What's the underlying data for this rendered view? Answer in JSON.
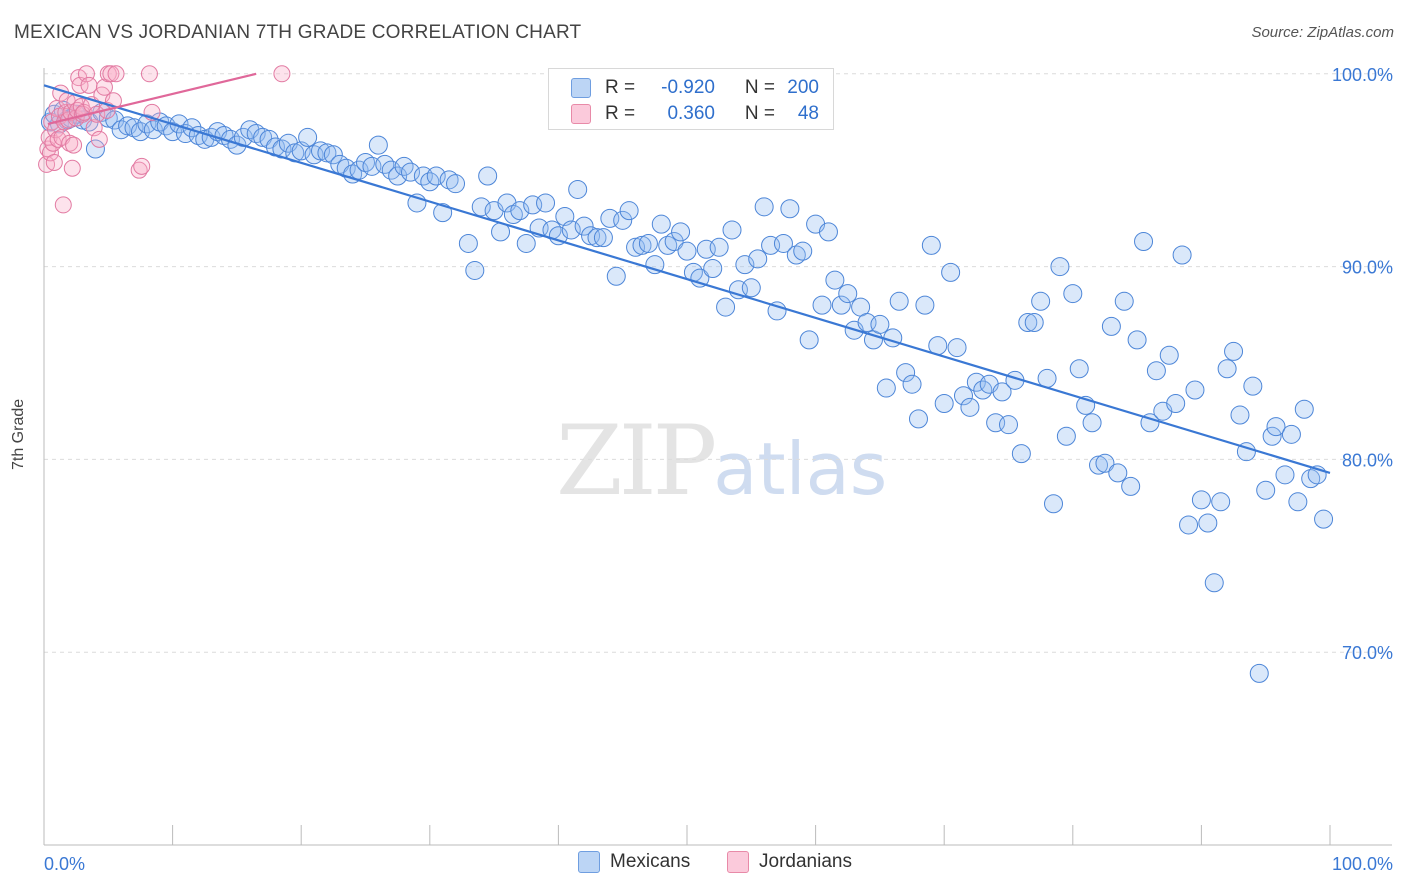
{
  "title": "MEXICAN VS JORDANIAN 7TH GRADE CORRELATION CHART",
  "source": "Source: ZipAtlas.com",
  "watermark": {
    "zip": "ZIP",
    "atlas": "atlas"
  },
  "stats": {
    "rows": [
      {
        "r_label": "R =",
        "r_value": "-0.920",
        "n_label": "N =",
        "n_value": "200",
        "color": "#a9c8f2",
        "border": "#6f9ee0"
      },
      {
        "r_label": "R =",
        "r_value": "0.360",
        "n_label": "N =",
        "n_value": "48",
        "color": "#f7b9cd",
        "border": "#e88aa8"
      }
    ]
  },
  "legend": {
    "items": [
      {
        "label": "Mexicans",
        "color": "#bcd5f5",
        "border": "#6f9ee0"
      },
      {
        "label": "Jordanians",
        "color": "#fbcadb",
        "border": "#e88aa8"
      }
    ]
  },
  "chart_data": {
    "type": "scatter",
    "title": "MEXICAN VS JORDANIAN 7TH GRADE CORRELATION CHART",
    "xlabel": "",
    "ylabel": "7th Grade",
    "xlim": [
      0,
      100
    ],
    "ylim": [
      60,
      100.5
    ],
    "x_tick_labels": [
      "0.0%",
      "100.0%"
    ],
    "y_ticks": [
      70,
      80,
      90,
      100
    ],
    "y_tick_labels": [
      "70.0%",
      "80.0%",
      "90.0%",
      "100.0%"
    ],
    "grid": true,
    "colors": {
      "mexicans": "#3a78d4",
      "jordanians": "#e0689a",
      "tick_label": "#3a78d4"
    },
    "series": [
      {
        "name": "Mexicans",
        "trend": {
          "x": [
            0,
            100
          ],
          "y": [
            99.4,
            79.3
          ]
        },
        "points": [
          [
            0.5,
            97.5
          ],
          [
            0.8,
            97.9
          ],
          [
            1.2,
            97.4
          ],
          [
            1.5,
            98.1
          ],
          [
            1.8,
            97.6
          ],
          [
            2.1,
            97.7
          ],
          [
            2.5,
            97.9
          ],
          [
            3.0,
            97.6
          ],
          [
            3.5,
            97.5
          ],
          [
            4.0,
            96.1
          ],
          [
            4.5,
            98.0
          ],
          [
            5.0,
            97.7
          ],
          [
            5.5,
            97.6
          ],
          [
            6.0,
            97.1
          ],
          [
            6.5,
            97.3
          ],
          [
            7.0,
            97.2
          ],
          [
            7.5,
            97.0
          ],
          [
            8.0,
            97.4
          ],
          [
            8.5,
            97.1
          ],
          [
            9.0,
            97.5
          ],
          [
            9.5,
            97.3
          ],
          [
            10.0,
            97.0
          ],
          [
            10.5,
            97.4
          ],
          [
            11.0,
            96.9
          ],
          [
            11.5,
            97.2
          ],
          [
            12.0,
            96.8
          ],
          [
            12.5,
            96.6
          ],
          [
            13.0,
            96.7
          ],
          [
            13.5,
            97.0
          ],
          [
            14.0,
            96.8
          ],
          [
            14.5,
            96.6
          ],
          [
            15.0,
            96.3
          ],
          [
            15.5,
            96.7
          ],
          [
            16.0,
            97.1
          ],
          [
            16.5,
            96.9
          ],
          [
            17.0,
            96.7
          ],
          [
            17.5,
            96.6
          ],
          [
            18.0,
            96.2
          ],
          [
            18.5,
            96.1
          ],
          [
            19.0,
            96.4
          ],
          [
            19.5,
            95.9
          ],
          [
            20.0,
            96.0
          ],
          [
            20.5,
            96.7
          ],
          [
            21.0,
            95.8
          ],
          [
            21.5,
            96.0
          ],
          [
            22.0,
            95.9
          ],
          [
            22.5,
            95.8
          ],
          [
            23.0,
            95.3
          ],
          [
            23.5,
            95.1
          ],
          [
            24.0,
            94.8
          ],
          [
            24.5,
            95.0
          ],
          [
            25.0,
            95.4
          ],
          [
            25.5,
            95.2
          ],
          [
            26.0,
            96.3
          ],
          [
            26.5,
            95.3
          ],
          [
            27.0,
            95.0
          ],
          [
            27.5,
            94.7
          ],
          [
            28.0,
            95.2
          ],
          [
            28.5,
            94.9
          ],
          [
            29.0,
            93.3
          ],
          [
            29.5,
            94.7
          ],
          [
            30.0,
            94.4
          ],
          [
            30.5,
            94.7
          ],
          [
            31.0,
            92.8
          ],
          [
            31.5,
            94.5
          ],
          [
            32.0,
            94.3
          ],
          [
            33.0,
            91.2
          ],
          [
            33.5,
            89.8
          ],
          [
            34.0,
            93.1
          ],
          [
            34.5,
            94.7
          ],
          [
            35.0,
            92.9
          ],
          [
            35.5,
            91.8
          ],
          [
            36.0,
            93.3
          ],
          [
            36.5,
            92.7
          ],
          [
            37.0,
            92.9
          ],
          [
            37.5,
            91.2
          ],
          [
            38.0,
            93.2
          ],
          [
            38.5,
            92.0
          ],
          [
            39.0,
            93.3
          ],
          [
            39.5,
            91.9
          ],
          [
            40.0,
            91.6
          ],
          [
            40.5,
            92.6
          ],
          [
            41.0,
            91.9
          ],
          [
            41.5,
            94.0
          ],
          [
            42.0,
            92.1
          ],
          [
            42.5,
            91.6
          ],
          [
            43.0,
            91.5
          ],
          [
            43.5,
            91.5
          ],
          [
            44.0,
            92.5
          ],
          [
            44.5,
            89.5
          ],
          [
            45.0,
            92.4
          ],
          [
            45.5,
            92.9
          ],
          [
            46.0,
            91.0
          ],
          [
            46.5,
            91.1
          ],
          [
            47.0,
            91.2
          ],
          [
            47.5,
            90.1
          ],
          [
            48.0,
            92.2
          ],
          [
            48.5,
            91.1
          ],
          [
            49.0,
            91.3
          ],
          [
            49.5,
            91.8
          ],
          [
            50.0,
            90.8
          ],
          [
            50.5,
            89.7
          ],
          [
            51.0,
            89.4
          ],
          [
            51.5,
            90.9
          ],
          [
            52.0,
            89.9
          ],
          [
            52.5,
            91.0
          ],
          [
            53.0,
            87.9
          ],
          [
            53.5,
            91.9
          ],
          [
            54.0,
            88.8
          ],
          [
            54.5,
            90.1
          ],
          [
            55.0,
            88.9
          ],
          [
            55.5,
            90.4
          ],
          [
            56.0,
            93.1
          ],
          [
            56.5,
            91.1
          ],
          [
            57.0,
            87.7
          ],
          [
            57.5,
            91.2
          ],
          [
            58.0,
            93.0
          ],
          [
            58.5,
            90.6
          ],
          [
            59.0,
            90.8
          ],
          [
            59.5,
            86.2
          ],
          [
            60.0,
            92.2
          ],
          [
            60.5,
            88.0
          ],
          [
            61.0,
            91.8
          ],
          [
            61.5,
            89.3
          ],
          [
            62.0,
            88.0
          ],
          [
            62.5,
            88.6
          ],
          [
            63.0,
            86.7
          ],
          [
            63.5,
            87.9
          ],
          [
            64.0,
            87.1
          ],
          [
            64.5,
            86.2
          ],
          [
            65.0,
            87.0
          ],
          [
            65.5,
            83.7
          ],
          [
            66.0,
            86.3
          ],
          [
            66.5,
            88.2
          ],
          [
            67.0,
            84.5
          ],
          [
            67.5,
            83.9
          ],
          [
            68.0,
            82.1
          ],
          [
            68.5,
            88.0
          ],
          [
            69.0,
            91.1
          ],
          [
            69.5,
            85.9
          ],
          [
            70.0,
            82.9
          ],
          [
            70.5,
            89.7
          ],
          [
            71.0,
            85.8
          ],
          [
            71.5,
            83.3
          ],
          [
            72.0,
            82.7
          ],
          [
            72.5,
            84.0
          ],
          [
            73.0,
            83.6
          ],
          [
            73.5,
            83.9
          ],
          [
            74.0,
            81.9
          ],
          [
            74.5,
            83.5
          ],
          [
            75.0,
            81.8
          ],
          [
            75.5,
            84.1
          ],
          [
            76.0,
            80.3
          ],
          [
            76.5,
            87.1
          ],
          [
            77.0,
            87.1
          ],
          [
            77.5,
            88.2
          ],
          [
            78.0,
            84.2
          ],
          [
            78.5,
            77.7
          ],
          [
            79.0,
            90.0
          ],
          [
            79.5,
            81.2
          ],
          [
            80.0,
            88.6
          ],
          [
            80.5,
            84.7
          ],
          [
            81.0,
            82.8
          ],
          [
            81.5,
            81.9
          ],
          [
            82.0,
            79.7
          ],
          [
            82.5,
            79.8
          ],
          [
            83.0,
            86.9
          ],
          [
            83.5,
            79.3
          ],
          [
            84.0,
            88.2
          ],
          [
            84.5,
            78.6
          ],
          [
            85.0,
            86.2
          ],
          [
            85.5,
            91.3
          ],
          [
            86.0,
            81.9
          ],
          [
            86.5,
            84.6
          ],
          [
            87.0,
            82.5
          ],
          [
            87.5,
            85.4
          ],
          [
            88.0,
            82.9
          ],
          [
            88.5,
            90.6
          ],
          [
            89.0,
            76.6
          ],
          [
            89.5,
            83.6
          ],
          [
            90.0,
            77.9
          ],
          [
            90.5,
            76.7
          ],
          [
            91.0,
            73.6
          ],
          [
            91.5,
            77.8
          ],
          [
            92.0,
            84.7
          ],
          [
            92.5,
            85.6
          ],
          [
            93.0,
            82.3
          ],
          [
            93.5,
            80.4
          ],
          [
            94.0,
            83.8
          ],
          [
            94.5,
            68.9
          ],
          [
            95.0,
            78.4
          ],
          [
            95.5,
            81.2
          ],
          [
            95.8,
            81.7
          ],
          [
            96.5,
            79.2
          ],
          [
            97.0,
            81.3
          ],
          [
            97.5,
            77.8
          ],
          [
            98.0,
            82.6
          ],
          [
            98.5,
            79.0
          ],
          [
            99.0,
            79.2
          ],
          [
            99.5,
            76.9
          ]
        ]
      },
      {
        "name": "Jordanians",
        "trend": {
          "x": [
            0.3,
            16.5
          ],
          "y": [
            97.4,
            100.0
          ]
        },
        "points": [
          [
            0.2,
            95.3
          ],
          [
            0.3,
            96.1
          ],
          [
            0.4,
            96.7
          ],
          [
            0.5,
            95.9
          ],
          [
            0.6,
            97.5
          ],
          [
            0.7,
            96.4
          ],
          [
            0.8,
            95.4
          ],
          [
            0.9,
            97.1
          ],
          [
            1.0,
            98.2
          ],
          [
            1.1,
            96.6
          ],
          [
            1.2,
            97.8
          ],
          [
            1.3,
            99.0
          ],
          [
            1.4,
            96.7
          ],
          [
            1.5,
            93.2
          ],
          [
            1.6,
            97.5
          ],
          [
            1.7,
            98.0
          ],
          [
            1.8,
            98.6
          ],
          [
            1.9,
            97.6
          ],
          [
            2.0,
            96.4
          ],
          [
            2.1,
            98.0
          ],
          [
            2.2,
            95.1
          ],
          [
            2.3,
            96.3
          ],
          [
            2.4,
            98.5
          ],
          [
            2.5,
            97.7
          ],
          [
            2.6,
            98.1
          ],
          [
            2.7,
            99.8
          ],
          [
            2.8,
            99.4
          ],
          [
            2.9,
            98.3
          ],
          [
            3.0,
            97.9
          ],
          [
            3.1,
            98.0
          ],
          [
            3.3,
            100.0
          ],
          [
            3.5,
            99.4
          ],
          [
            3.7,
            98.4
          ],
          [
            3.9,
            97.2
          ],
          [
            4.1,
            97.9
          ],
          [
            4.3,
            96.6
          ],
          [
            4.5,
            98.9
          ],
          [
            4.7,
            99.3
          ],
          [
            4.9,
            98.1
          ],
          [
            5.0,
            100.0
          ],
          [
            5.2,
            100.0
          ],
          [
            5.4,
            98.6
          ],
          [
            5.6,
            100.0
          ],
          [
            7.4,
            95.0
          ],
          [
            7.6,
            95.2
          ],
          [
            8.2,
            100.0
          ],
          [
            8.4,
            98.0
          ],
          [
            18.5,
            100.0
          ]
        ]
      }
    ]
  }
}
